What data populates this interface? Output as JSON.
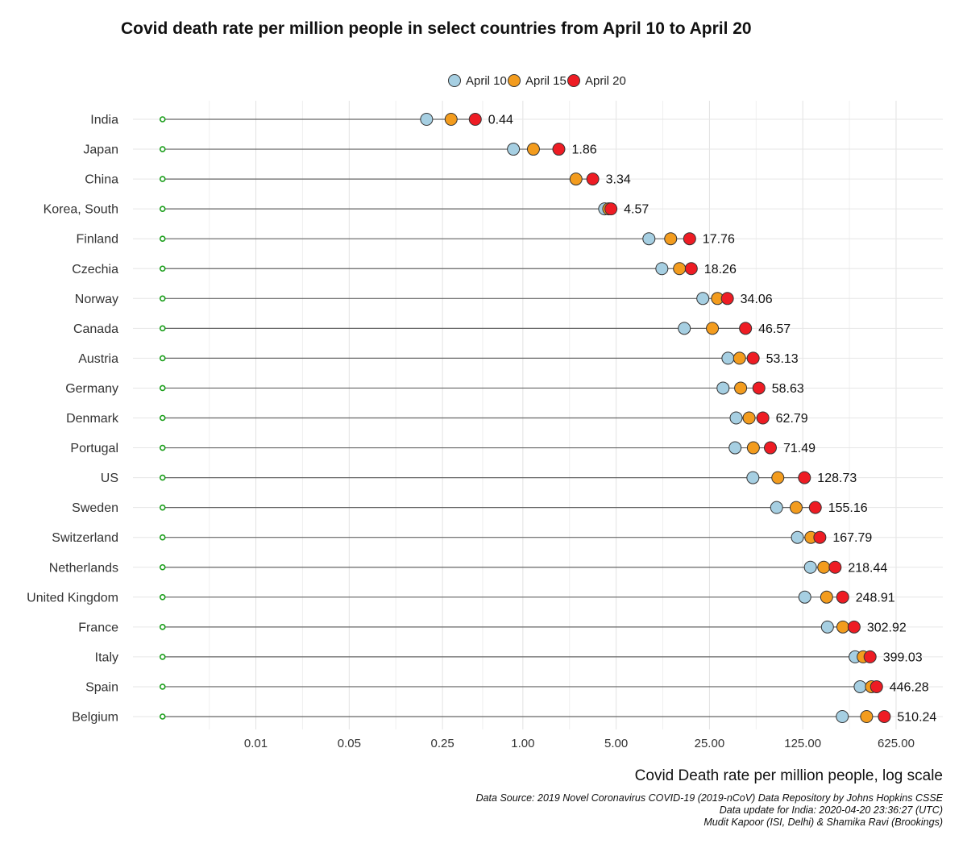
{
  "title": "Covid death rate per million people in select countries from April 10 to April 20",
  "xlabel": "Covid Death rate per million people, log scale",
  "notes": [
    "Data Source: 2019 Novel Coronavirus COVID-19 (2019-nCoV) Data Repository by Johns Hopkins CSSE",
    "Data update for India: 2020-04-20 23:36:27 (UTC)",
    "Mudit Kapoor (ISI, Delhi) & Shamika Ravi (Brookings)"
  ],
  "chart_data": {
    "type": "scatter",
    "subtype": "dot-plot",
    "x_scale": "log",
    "x_ticks": [
      0.01,
      0.05,
      0.25,
      1.0,
      5.0,
      25.0,
      125.0,
      625.0
    ],
    "x_tick_labels": [
      "0.01",
      "0.05",
      "0.25",
      "1.00",
      "5.00",
      "25.00",
      "125.00",
      "625.00"
    ],
    "xlim": [
      0.0012,
      1400
    ],
    "line_start": 0.002,
    "legend_position": "top",
    "grid": true,
    "series": [
      {
        "name": "April 10",
        "color": "#a6cfe2"
      },
      {
        "name": "April 15",
        "color": "#f39c1e"
      },
      {
        "name": "April 20",
        "color": "#ee1c24"
      }
    ],
    "countries": [
      {
        "name": "India",
        "april10": 0.19,
        "april15": 0.29,
        "april20": 0.44,
        "label": "0.44"
      },
      {
        "name": "Japan",
        "april10": 0.85,
        "april15": 1.2,
        "april20": 1.86,
        "label": "1.86"
      },
      {
        "name": "China",
        "april10": null,
        "april15": 2.5,
        "april20": 3.34,
        "label": "3.34"
      },
      {
        "name": "Korea, South",
        "april10": 4.1,
        "april15": 4.4,
        "april20": 4.57,
        "label": "4.57"
      },
      {
        "name": "Finland",
        "april10": 8.8,
        "april15": 12.8,
        "april20": 17.76,
        "label": "17.76"
      },
      {
        "name": "Czechia",
        "april10": 11.0,
        "april15": 14.9,
        "april20": 18.26,
        "label": "18.26"
      },
      {
        "name": "Norway",
        "april10": 22.3,
        "april15": 28.7,
        "april20": 34.06,
        "label": "34.06"
      },
      {
        "name": "Canada",
        "april10": 16.2,
        "april15": 26.3,
        "april20": 46.57,
        "label": "46.57"
      },
      {
        "name": "Austria",
        "april10": 34.4,
        "april15": 42.0,
        "april20": 53.13,
        "label": "53.13"
      },
      {
        "name": "Germany",
        "april10": 31.6,
        "april15": 42.8,
        "april20": 58.63,
        "label": "58.63"
      },
      {
        "name": "Denmark",
        "april10": 39.6,
        "april15": 49.5,
        "april20": 62.79,
        "label": "62.79"
      },
      {
        "name": "Portugal",
        "april10": 38.9,
        "april15": 53.3,
        "april20": 71.49,
        "label": "71.49"
      },
      {
        "name": "US",
        "april10": 52.9,
        "april15": 81.3,
        "april20": 128.73,
        "label": "128.73"
      },
      {
        "name": "Sweden",
        "april10": 79.6,
        "april15": 111.5,
        "april20": 155.16,
        "label": "155.16"
      },
      {
        "name": "Switzerland",
        "april10": 114.0,
        "april15": 143.8,
        "april20": 167.79,
        "label": "167.79"
      },
      {
        "name": "Netherlands",
        "april10": 142.6,
        "april15": 179.6,
        "april20": 218.44,
        "label": "218.44"
      },
      {
        "name": "United Kingdom",
        "april10": 129.5,
        "april15": 188.7,
        "april20": 248.91,
        "label": "248.91"
      },
      {
        "name": "France",
        "april10": 191.3,
        "april15": 249.7,
        "april20": 302.92,
        "label": "302.92"
      },
      {
        "name": "Italy",
        "april10": 308.1,
        "april15": 354.3,
        "april20": 399.03,
        "label": "399.03"
      },
      {
        "name": "Spain",
        "april10": 336.3,
        "april15": 408.6,
        "april20": 446.28,
        "label": "446.28"
      },
      {
        "name": "Belgium",
        "april10": 247.2,
        "april15": 375.8,
        "april20": 510.24,
        "label": "510.24"
      }
    ]
  }
}
